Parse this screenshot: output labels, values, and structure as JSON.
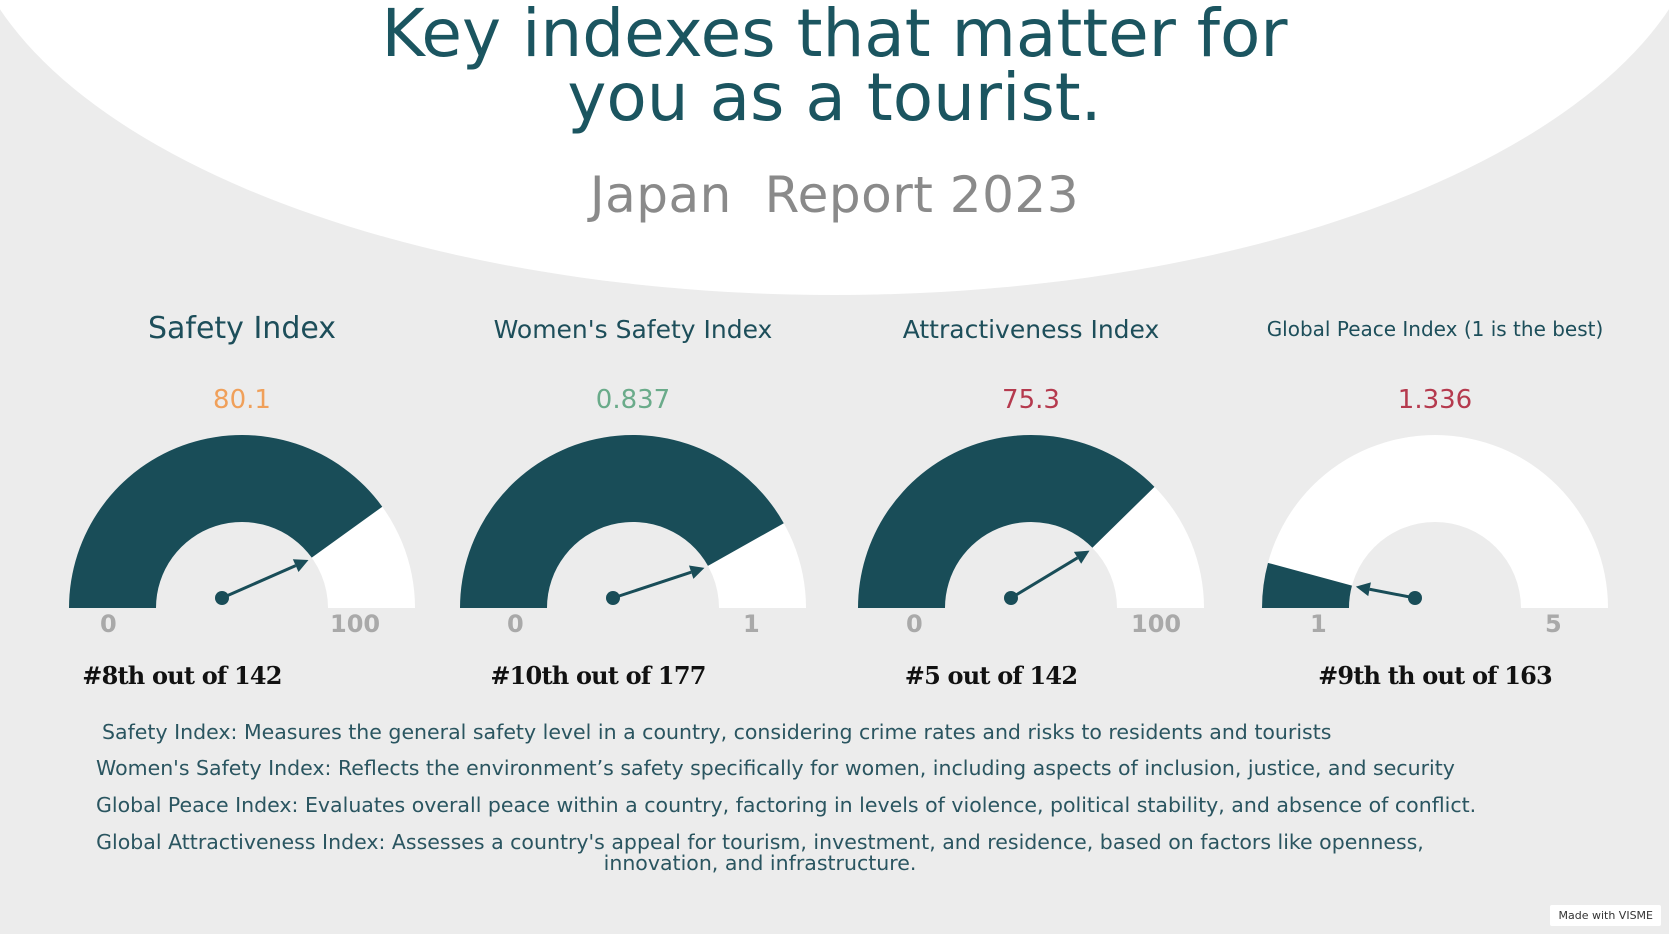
{
  "header": {
    "title_line1": "Key indexes that matter for",
    "title_line2": "you as a tourist.",
    "subtitle": "Japan  Report 2023"
  },
  "colors": {
    "gauge_fill": "#194d58",
    "gauge_empty": "#ffffff",
    "title_teal": "#1b5560",
    "value_orange": "#f0a05a",
    "value_green": "#6aab8a",
    "value_red": "#b53a4e"
  },
  "gauges": [
    {
      "title": "Safety Index",
      "value_label": "80.1",
      "value": 80.1,
      "min_label": "0",
      "max_label": "100",
      "min": 0,
      "max": 100,
      "value_color": "#f0a05a",
      "rank": "#8th out of 142"
    },
    {
      "title": "Women's Safety Index",
      "value_label": "0.837",
      "value": 0.837,
      "min_label": "0",
      "max_label": "1",
      "min": 0,
      "max": 1,
      "value_color": "#6aab8a",
      "rank": "#10th out of 177"
    },
    {
      "title": "Attractiveness Index",
      "value_label": "75.3",
      "value": 75.3,
      "min_label": "0",
      "max_label": "100",
      "min": 0,
      "max": 100,
      "value_color": "#b53a4e",
      "rank": "#5 out of 142"
    },
    {
      "title": "Global Peace Index (1 is the best)",
      "value_label": "1.336",
      "value": 1.336,
      "min_label": "1",
      "max_label": "5",
      "min": 1,
      "max": 5,
      "value_color": "#b53a4e",
      "rank": "#9th th out of 163"
    }
  ],
  "definitions": [
    "Safety Index: Measures the general safety level in a country, considering crime rates and risks to residents and tourists",
    "Women's Safety Index: Reflects the environment’s safety specifically for women, including aspects of inclusion, justice, and security",
    "Global Peace Index: Evaluates overall peace within a country, factoring in levels of violence, political stability, and absence of conflict.",
    "Global Attractiveness Index: Assesses a country's appeal for tourism, investment, and residence, based on factors like openness, innovation, and infrastructure."
  ],
  "badge": "Made with VISME"
}
